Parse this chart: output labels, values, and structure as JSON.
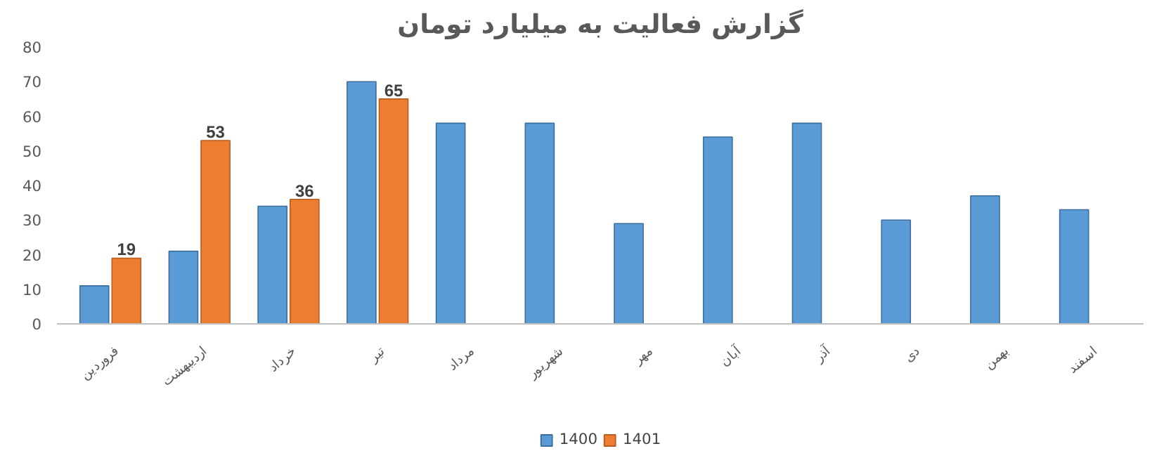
{
  "chart_data": {
    "type": "bar",
    "title": "گزارش فعالیت به میلیارد تومان",
    "categories": [
      "فروردین",
      "اردیبهشت",
      "خرداد",
      "تیر",
      "مرداد",
      "شهریور",
      "مهر",
      "آبان",
      "آذر",
      "دی",
      "بهمن",
      "اسفند"
    ],
    "series": [
      {
        "name": "1400",
        "color": "#5b9bd5",
        "values": [
          11,
          21,
          34,
          70,
          58,
          58,
          29,
          54,
          58,
          30,
          37,
          33
        ]
      },
      {
        "name": "1401",
        "color": "#ed7d31",
        "values": [
          19,
          53,
          36,
          65,
          null,
          null,
          null,
          null,
          null,
          null,
          null,
          null
        ],
        "value_labels": [
          "19",
          "53",
          "36",
          "65",
          null,
          null,
          null,
          null,
          null,
          null,
          null,
          null
        ]
      }
    ],
    "ylim": [
      0,
      80
    ],
    "yticks": [
      0,
      10,
      20,
      30,
      40,
      50,
      60,
      70,
      80
    ],
    "grid": false,
    "legend": "bottom"
  }
}
